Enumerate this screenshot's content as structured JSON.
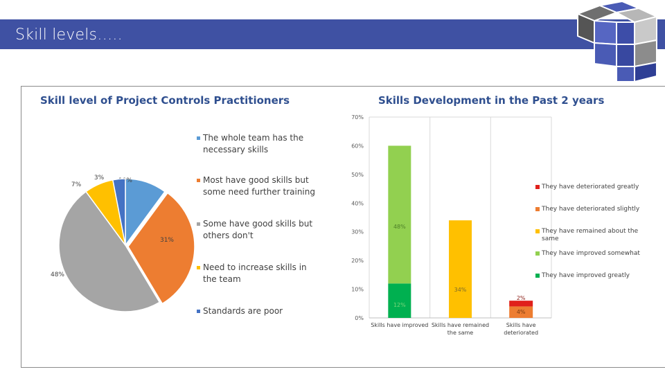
{
  "slide": {
    "title": "Skill levels…..",
    "colors": {
      "banner": "#3f51a3",
      "title_text": "#2f4f8f"
    }
  },
  "chart_data": [
    {
      "type": "pie",
      "title": "Skill level of Project Controls Practitioners",
      "categories": [
        "The whole team has the necessary skills",
        "Most have good skills but some need further training",
        "Some have good skills but others don't",
        "Need to increase skills in the team",
        "Standards are poor"
      ],
      "values": [
        10,
        31,
        48,
        7,
        3
      ],
      "labels": [
        "10%",
        "31%",
        "48%",
        "7%",
        "3%"
      ],
      "colors": [
        "#5b9bd5",
        "#ed7d31",
        "#a5a5a5",
        "#ffc000",
        "#4472c4"
      ],
      "legend_position": "right"
    },
    {
      "type": "bar",
      "stacked": true,
      "title": "Skills Development in the Past 2 years",
      "categories": [
        "Skills have improved",
        "Skills have remained the same",
        "Skills have deteriorated"
      ],
      "ylim": [
        0,
        70
      ],
      "yticks": [
        "0%",
        "10%",
        "20%",
        "30%",
        "40%",
        "50%",
        "60%",
        "70%"
      ],
      "series": [
        {
          "name": "They have improved greatly",
          "color": "#00b050",
          "values": [
            12,
            0,
            0
          ],
          "labels": [
            "12%",
            "",
            ""
          ]
        },
        {
          "name": "They have improved somewhat",
          "color": "#92d050",
          "values": [
            48,
            0,
            0
          ],
          "labels": [
            "48%",
            "",
            ""
          ]
        },
        {
          "name": "They have remained about the same",
          "color": "#ffc000",
          "values": [
            0,
            34,
            0
          ],
          "labels": [
            "",
            "34%",
            ""
          ]
        },
        {
          "name": "They have deteriorated slightly",
          "color": "#ed7d31",
          "values": [
            0,
            0,
            4
          ],
          "labels": [
            "",
            "",
            "4%"
          ]
        },
        {
          "name": "They have deteriorated greatly",
          "color": "#e0201b",
          "values": [
            0,
            0,
            2
          ],
          "labels": [
            "",
            "",
            "2%"
          ]
        }
      ],
      "legend_order": [
        "They have deteriorated greatly",
        "They have deteriorated slightly",
        "They have remained about the same",
        "They have improved somewhat",
        "They have improved greatly"
      ],
      "legend_position": "right",
      "grid": true
    }
  ]
}
